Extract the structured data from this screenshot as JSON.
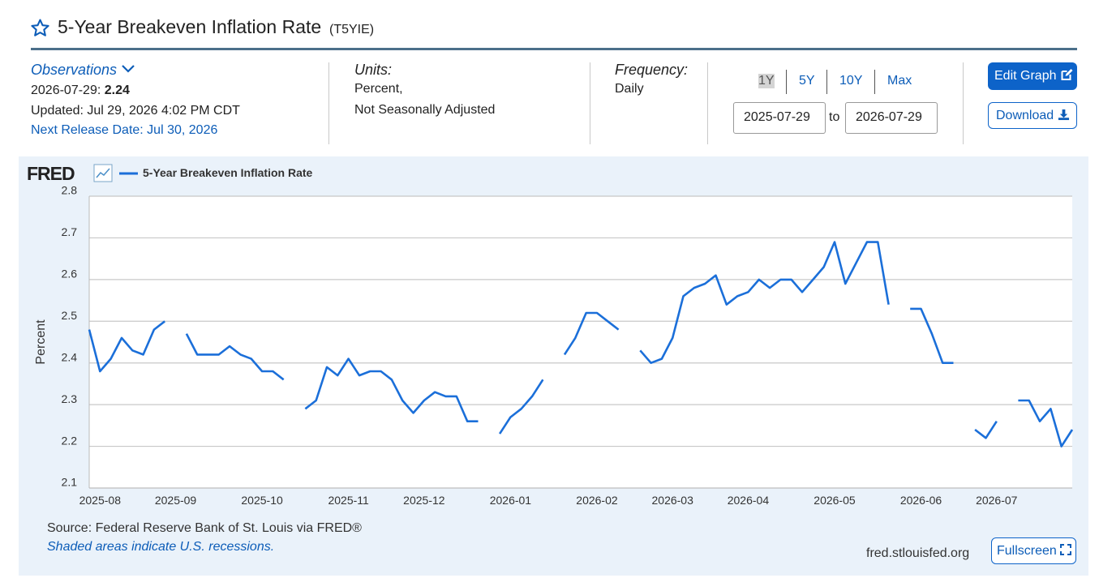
{
  "header": {
    "title": "5-Year Breakeven Inflation Rate",
    "series_id": "(T5YIE)"
  },
  "observations": {
    "label": "Observations",
    "date": "2026-07-29:",
    "value": 2.24,
    "updated": "Updated: Jul 29, 2026 4:02 PM CDT",
    "next_release": "Next Release Date: Jul 30, 2026"
  },
  "units": {
    "label": "Units:",
    "lines": [
      "Percent,",
      "Not Seasonally Adjusted"
    ]
  },
  "frequency": {
    "label": "Frequency:",
    "value": "Daily"
  },
  "range_buttons": [
    "1Y",
    "5Y",
    "10Y",
    "Max"
  ],
  "date_range": {
    "start": "2025-07-29",
    "to": "to",
    "end": "2026-07-29"
  },
  "buttons": {
    "edit": "Edit Graph",
    "download": "Download"
  },
  "logo": "FRED",
  "chart_data": {
    "type": "line",
    "ylabel": "Percent",
    "categories": [
      null,
      "2025-08",
      null,
      null,
      null,
      null,
      null,
      null,
      "2025-09",
      null,
      null,
      null,
      null,
      null,
      null,
      null,
      "2025-10",
      null,
      null,
      null,
      null,
      null,
      null,
      null,
      "2025-11",
      null,
      null,
      null,
      null,
      null,
      null,
      "2025-12",
      null,
      null,
      null,
      null,
      null,
      null,
      null,
      "2026-01",
      null,
      null,
      null,
      null,
      null,
      null,
      null,
      "2026-02",
      null,
      null,
      null,
      null,
      null,
      null,
      "2026-03",
      null,
      null,
      null,
      null,
      null,
      null,
      "2026-04",
      null,
      null,
      null,
      null,
      null,
      null,
      null,
      "2026-05",
      null,
      null,
      null,
      null,
      null,
      null,
      null,
      "2026-06",
      null,
      null,
      null,
      null,
      null,
      null,
      "2026-07",
      null,
      null,
      null,
      null,
      null,
      null,
      null
    ],
    "series": [
      {
        "name": "5-Year Breakeven Inflation Rate",
        "color": "#1b6fd9",
        "values": [
          2.48,
          2.38,
          2.41,
          2.46,
          2.43,
          2.42,
          2.48,
          2.5,
          null,
          2.47,
          2.42,
          2.42,
          2.42,
          2.44,
          2.42,
          2.41,
          2.38,
          2.38,
          2.36,
          null,
          2.29,
          2.31,
          2.39,
          2.37,
          2.41,
          2.37,
          2.38,
          2.38,
          2.36,
          2.31,
          2.28,
          2.31,
          2.33,
          2.32,
          2.32,
          2.26,
          2.26,
          null,
          2.23,
          2.27,
          2.29,
          2.32,
          2.36,
          null,
          2.42,
          2.46,
          2.52,
          2.52,
          2.5,
          2.48,
          null,
          2.43,
          2.4,
          2.41,
          2.46,
          2.56,
          2.58,
          2.59,
          2.61,
          2.54,
          2.56,
          2.57,
          2.6,
          2.58,
          2.6,
          2.6,
          2.57,
          2.6,
          2.63,
          2.69,
          2.59,
          2.64,
          2.69,
          2.69,
          2.54,
          null,
          2.53,
          2.53,
          2.47,
          2.4,
          2.4,
          null,
          2.24,
          2.22,
          2.26,
          null,
          2.31,
          2.31,
          2.26,
          2.29,
          2.2,
          2.24
        ]
      }
    ],
    "ylim": [
      2.1,
      2.8
    ],
    "yticks": [
      2.1,
      2.2,
      2.3,
      2.4,
      2.5,
      2.6,
      2.7,
      2.8
    ],
    "grid": true,
    "legend": "top-left"
  },
  "footer": {
    "source": "Source: Federal Reserve Bank of St. Louis via FRED®",
    "note": "Shaded areas indicate U.S. recessions.",
    "site": "fred.stlouisfed.org",
    "fullscreen": "Fullscreen"
  }
}
